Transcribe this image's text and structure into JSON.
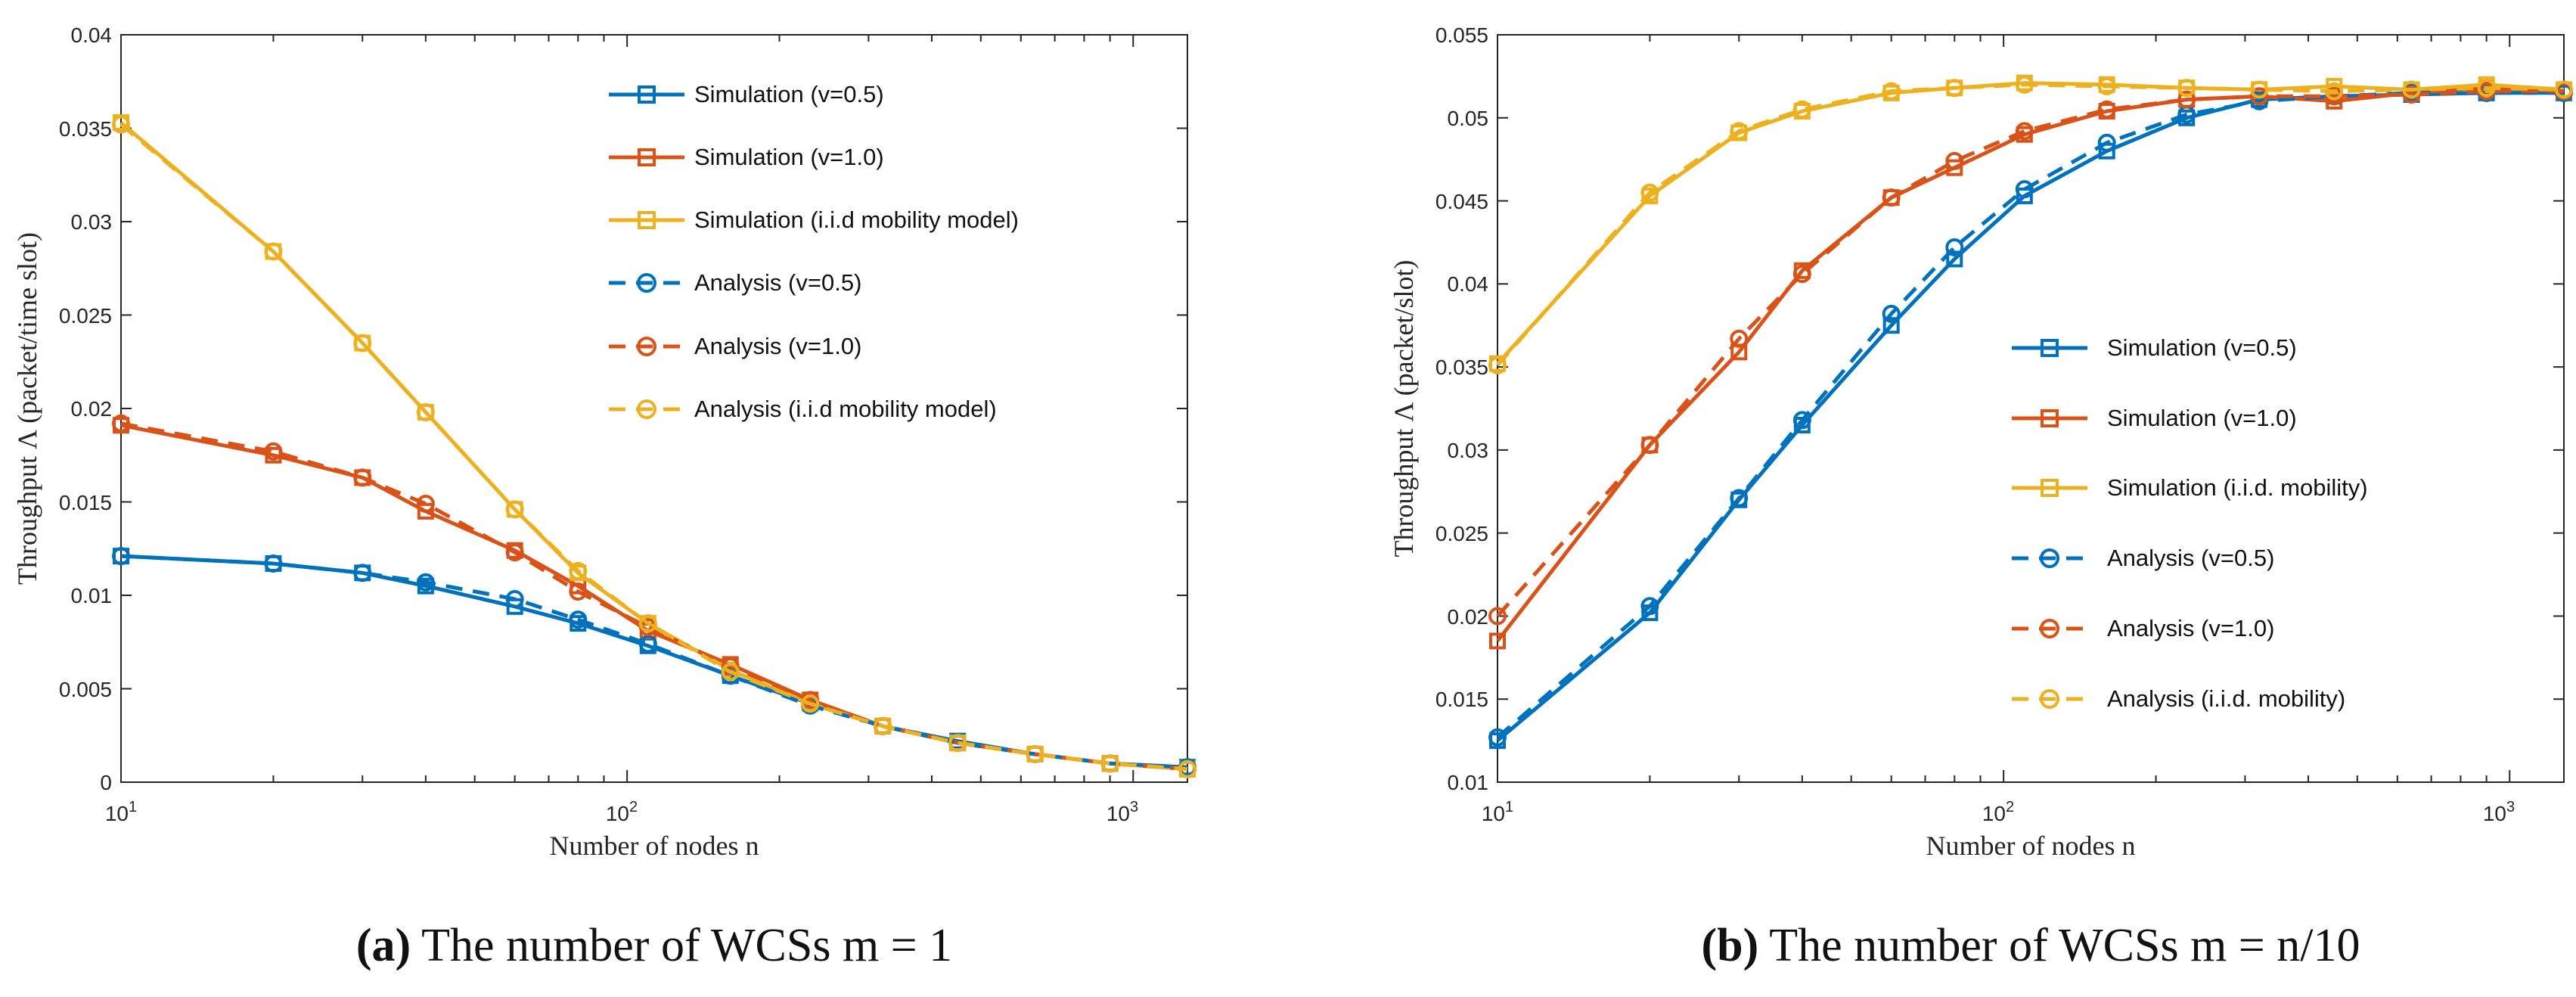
{
  "colors": {
    "blue": "#0072BD",
    "red": "#D95319",
    "yellow": "#EDB120"
  },
  "chart_data": [
    {
      "type": "line",
      "caption_prefix": "(a)",
      "caption_text": "The number of WCSs m = 1",
      "xlabel": "Number of nodes n",
      "ylabel": "Throughput Λ (packet/time slot)",
      "xscale": "log",
      "xlim": [
        10,
        1280
      ],
      "ylim": [
        0,
        0.04
      ],
      "yticks": [
        "0",
        "0.005",
        "0.01",
        "0.015",
        "0.02",
        "0.025",
        "0.03",
        "0.035",
        "0.04"
      ],
      "xtick_bases": [
        "10",
        "10",
        "10"
      ],
      "xtick_exps": [
        "1",
        "2",
        "3"
      ],
      "legend_position": "top-right",
      "x": [
        10,
        20,
        30,
        40,
        60,
        80,
        110,
        160,
        230,
        320,
        450,
        640,
        900,
        1280
      ],
      "series": [
        {
          "name": "Simulation (v=0.5)",
          "color": "blue",
          "style": "solid",
          "marker": "square",
          "values": [
            0.0121,
            0.0117,
            0.0112,
            0.0105,
            0.0094,
            0.0085,
            0.0073,
            0.0057,
            0.0042,
            0.003,
            0.0022,
            0.0015,
            0.001,
            0.0008
          ]
        },
        {
          "name": "Simulation (v=1.0)",
          "color": "red",
          "style": "solid",
          "marker": "square",
          "values": [
            0.0191,
            0.0175,
            0.0163,
            0.0145,
            0.0124,
            0.0105,
            0.0081,
            0.0063,
            0.0044,
            0.003,
            0.0021,
            0.0015,
            0.001,
            0.0007
          ]
        },
        {
          "name": "Simulation (i.i.d mobility model)",
          "color": "yellow",
          "style": "solid",
          "marker": "square",
          "values": [
            0.0353,
            0.0284,
            0.0235,
            0.0198,
            0.0146,
            0.0112,
            0.0085,
            0.006,
            0.0042,
            0.003,
            0.0021,
            0.0015,
            0.001,
            0.0007
          ]
        },
        {
          "name": "Analysis (v=0.5)",
          "color": "blue",
          "style": "dashed",
          "marker": "circle",
          "values": [
            0.0121,
            0.0117,
            0.0112,
            0.0107,
            0.0098,
            0.0087,
            0.0074,
            0.0057,
            0.0041,
            0.003,
            0.0021,
            0.0015,
            0.001,
            0.0008
          ]
        },
        {
          "name": "Analysis (v=1.0)",
          "color": "red",
          "style": "dashed",
          "marker": "circle",
          "values": [
            0.0192,
            0.0177,
            0.0163,
            0.0149,
            0.0123,
            0.0102,
            0.0083,
            0.0062,
            0.0044,
            0.003,
            0.0021,
            0.0015,
            0.001,
            0.0007
          ]
        },
        {
          "name": "Analysis (i.i.d mobility model)",
          "color": "yellow",
          "style": "dashed",
          "marker": "circle",
          "values": [
            0.0352,
            0.0284,
            0.0235,
            0.0198,
            0.0146,
            0.0113,
            0.0085,
            0.0059,
            0.0042,
            0.003,
            0.0021,
            0.0015,
            0.001,
            0.0007
          ]
        }
      ]
    },
    {
      "type": "line",
      "caption_prefix": "(b)",
      "caption_text": "The number of WCSs m = n/10",
      "xlabel": "Number of nodes n",
      "ylabel": "Throughput Λ (packet/slot)",
      "xscale": "log",
      "xlim": [
        10,
        1280
      ],
      "ylim": [
        0.01,
        0.055
      ],
      "yticks": [
        "0.01",
        "0.015",
        "0.02",
        "0.025",
        "0.03",
        "0.035",
        "0.04",
        "0.045",
        "0.05",
        "0.055"
      ],
      "xtick_bases": [
        "10",
        "10",
        "10"
      ],
      "xtick_exps": [
        "1",
        "2",
        "3"
      ],
      "legend_position": "right",
      "x": [
        10,
        20,
        30,
        40,
        60,
        80,
        110,
        160,
        230,
        320,
        450,
        640,
        900,
        1280
      ],
      "series": [
        {
          "name": "Simulation (v=0.5)",
          "color": "blue",
          "style": "solid",
          "marker": "square",
          "values": [
            0.0125,
            0.0202,
            0.027,
            0.0315,
            0.0375,
            0.0415,
            0.0453,
            0.048,
            0.05,
            0.0511,
            0.0513,
            0.0514,
            0.0515,
            0.0515
          ]
        },
        {
          "name": "Simulation (v=1.0)",
          "color": "red",
          "style": "solid",
          "marker": "square",
          "values": [
            0.0185,
            0.0303,
            0.0359,
            0.0408,
            0.0452,
            0.047,
            0.049,
            0.0504,
            0.0511,
            0.0513,
            0.051,
            0.0515,
            0.0518,
            0.0516
          ]
        },
        {
          "name": "Simulation (i.i.d. mobility)",
          "color": "yellow",
          "style": "solid",
          "marker": "square",
          "values": [
            0.0352,
            0.0453,
            0.0491,
            0.0504,
            0.0515,
            0.0518,
            0.0521,
            0.052,
            0.0518,
            0.0517,
            0.0519,
            0.0517,
            0.052,
            0.0517
          ]
        },
        {
          "name": "Analysis (v=0.5)",
          "color": "blue",
          "style": "dashed",
          "marker": "circle",
          "values": [
            0.0127,
            0.0206,
            0.0271,
            0.0318,
            0.0382,
            0.0422,
            0.0457,
            0.0485,
            0.0502,
            0.051,
            0.0513,
            0.0515,
            0.0515,
            0.0515
          ]
        },
        {
          "name": "Analysis (v=1.0)",
          "color": "red",
          "style": "dashed",
          "marker": "circle",
          "values": [
            0.02,
            0.0303,
            0.0367,
            0.0406,
            0.0452,
            0.0474,
            0.0492,
            0.0505,
            0.0511,
            0.0513,
            0.0513,
            0.0514,
            0.0516,
            0.0516
          ]
        },
        {
          "name": "Analysis (i.i.d. mobility)",
          "color": "yellow",
          "style": "dashed",
          "marker": "circle",
          "values": [
            0.0351,
            0.0455,
            0.0492,
            0.0505,
            0.0516,
            0.0518,
            0.052,
            0.0519,
            0.0518,
            0.0517,
            0.0516,
            0.0517,
            0.0518,
            0.0517
          ]
        }
      ]
    }
  ]
}
